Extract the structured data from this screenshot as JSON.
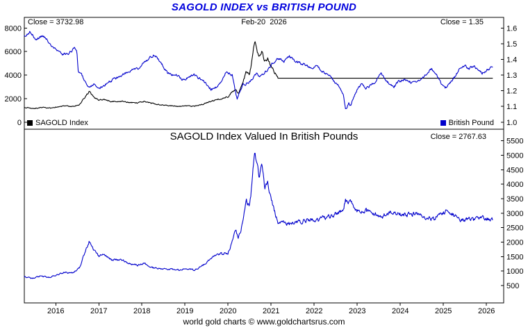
{
  "title": "SAGOLD INDEX vs BRITISH POUND",
  "footer": "world gold charts © www.goldchartsrus.com",
  "colors": {
    "title": "#0000dd",
    "line_blue": "#0000cc",
    "line_black": "#000000"
  },
  "top_panel": {
    "close_left": "Close = 3732.98",
    "date_label": "Feb-20  2026",
    "close_right": "Close = 1.35",
    "legend": [
      {
        "label": "SAGOLD Index",
        "color": "#000000"
      },
      {
        "label": "British Pound",
        "color": "#0000cc"
      }
    ]
  },
  "bottom_panel": {
    "title": "SAGOLD Index Valued In British Pounds",
    "close_right": "Close = 2767.63"
  },
  "chart_data": [
    {
      "type": "line",
      "title": "SAGOLD INDEX vs BRITISH POUND",
      "grid": false,
      "x_range": [
        2015.27,
        2026.4
      ],
      "x_ticks": [
        2016,
        2017,
        2018,
        2019,
        2020,
        2021,
        2022,
        2023,
        2024,
        2025,
        2026
      ],
      "left_axis": {
        "ticks": [
          0,
          2000,
          4000,
          6000,
          8000
        ],
        "range": [
          -600,
          8900
        ],
        "decimals": 0
      },
      "right_axis": {
        "ticks": [
          1.0,
          1.1,
          1.2,
          1.3,
          1.4,
          1.5,
          1.6
        ],
        "range": [
          0.955,
          1.6675
        ],
        "decimals": 1
      },
      "series": [
        {
          "name": "SAGOLD Index",
          "color": "#000000",
          "axis": "left",
          "close": 3732.98,
          "seed": 11,
          "noise_pct": 0.025,
          "noise_until": 2021.17,
          "points": [
            [
              2015.27,
              1250
            ],
            [
              2015.5,
              1170
            ],
            [
              2015.7,
              1260
            ],
            [
              2015.9,
              1190
            ],
            [
              2016.05,
              1290
            ],
            [
              2016.2,
              1380
            ],
            [
              2016.4,
              1330
            ],
            [
              2016.55,
              1480
            ],
            [
              2016.7,
              2250
            ],
            [
              2016.78,
              2600
            ],
            [
              2016.88,
              2150
            ],
            [
              2017.0,
              1850
            ],
            [
              2017.12,
              1950
            ],
            [
              2017.3,
              1750
            ],
            [
              2017.5,
              1800
            ],
            [
              2017.7,
              1680
            ],
            [
              2017.9,
              1620
            ],
            [
              2018.05,
              1760
            ],
            [
              2018.25,
              1600
            ],
            [
              2018.45,
              1480
            ],
            [
              2018.65,
              1400
            ],
            [
              2018.85,
              1340
            ],
            [
              2019.05,
              1380
            ],
            [
              2019.2,
              1340
            ],
            [
              2019.4,
              1500
            ],
            [
              2019.6,
              1760
            ],
            [
              2019.75,
              1950
            ],
            [
              2019.9,
              2060
            ],
            [
              2020.0,
              2160
            ],
            [
              2020.1,
              2620
            ],
            [
              2020.18,
              2820
            ],
            [
              2020.24,
              2440
            ],
            [
              2020.32,
              3120
            ],
            [
              2020.42,
              4320
            ],
            [
              2020.5,
              4080
            ],
            [
              2020.56,
              5250
            ],
            [
              2020.62,
              6880
            ],
            [
              2020.66,
              6350
            ],
            [
              2020.72,
              5480
            ],
            [
              2020.78,
              6020
            ],
            [
              2020.85,
              5080
            ],
            [
              2020.92,
              5420
            ],
            [
              2021.0,
              4780
            ],
            [
              2021.06,
              4380
            ],
            [
              2021.12,
              3980
            ],
            [
              2021.17,
              3732.98
            ],
            [
              2026.14,
              3732.98
            ]
          ]
        },
        {
          "name": "British Pound",
          "color": "#0000cc",
          "axis": "right",
          "close": 1.35,
          "seed": 23,
          "noise_abs": 0.007,
          "points": [
            [
              2015.27,
              1.545
            ],
            [
              2015.4,
              1.575
            ],
            [
              2015.55,
              1.525
            ],
            [
              2015.7,
              1.555
            ],
            [
              2015.85,
              1.505
            ],
            [
              2016.0,
              1.465
            ],
            [
              2016.15,
              1.43
            ],
            [
              2016.3,
              1.44
            ],
            [
              2016.45,
              1.475
            ],
            [
              2016.49,
              1.455
            ],
            [
              2016.52,
              1.33
            ],
            [
              2016.6,
              1.3
            ],
            [
              2016.77,
              1.22
            ],
            [
              2016.9,
              1.245
            ],
            [
              2017.0,
              1.21
            ],
            [
              2017.2,
              1.25
            ],
            [
              2017.4,
              1.28
            ],
            [
              2017.6,
              1.31
            ],
            [
              2017.75,
              1.33
            ],
            [
              2017.95,
              1.35
            ],
            [
              2018.1,
              1.39
            ],
            [
              2018.28,
              1.43
            ],
            [
              2018.4,
              1.4
            ],
            [
              2018.6,
              1.31
            ],
            [
              2018.8,
              1.3
            ],
            [
              2018.95,
              1.27
            ],
            [
              2019.2,
              1.3
            ],
            [
              2019.45,
              1.26
            ],
            [
              2019.6,
              1.21
            ],
            [
              2019.75,
              1.225
            ],
            [
              2019.9,
              1.29
            ],
            [
              2019.97,
              1.32
            ],
            [
              2020.1,
              1.3
            ],
            [
              2020.21,
              1.145
            ],
            [
              2020.35,
              1.24
            ],
            [
              2020.5,
              1.255
            ],
            [
              2020.65,
              1.31
            ],
            [
              2020.75,
              1.29
            ],
            [
              2020.9,
              1.33
            ],
            [
              2021.0,
              1.365
            ],
            [
              2021.15,
              1.41
            ],
            [
              2021.3,
              1.39
            ],
            [
              2021.42,
              1.42
            ],
            [
              2021.6,
              1.38
            ],
            [
              2021.75,
              1.37
            ],
            [
              2021.95,
              1.34
            ],
            [
              2022.05,
              1.36
            ],
            [
              2022.2,
              1.32
            ],
            [
              2022.35,
              1.3
            ],
            [
              2022.5,
              1.25
            ],
            [
              2022.6,
              1.22
            ],
            [
              2022.68,
              1.17
            ],
            [
              2022.73,
              1.075
            ],
            [
              2022.8,
              1.12
            ],
            [
              2022.85,
              1.1
            ],
            [
              2022.92,
              1.16
            ],
            [
              2023.0,
              1.21
            ],
            [
              2023.1,
              1.24
            ],
            [
              2023.2,
              1.21
            ],
            [
              2023.4,
              1.25
            ],
            [
              2023.55,
              1.31
            ],
            [
              2023.65,
              1.27
            ],
            [
              2023.85,
              1.22
            ],
            [
              2023.95,
              1.26
            ],
            [
              2024.1,
              1.27
            ],
            [
              2024.3,
              1.25
            ],
            [
              2024.5,
              1.28
            ],
            [
              2024.65,
              1.32
            ],
            [
              2024.72,
              1.34
            ],
            [
              2024.85,
              1.3
            ],
            [
              2024.95,
              1.25
            ],
            [
              2025.05,
              1.22
            ],
            [
              2025.2,
              1.26
            ],
            [
              2025.35,
              1.33
            ],
            [
              2025.5,
              1.36
            ],
            [
              2025.6,
              1.34
            ],
            [
              2025.7,
              1.36
            ],
            [
              2025.8,
              1.33
            ],
            [
              2025.9,
              1.31
            ],
            [
              2026.0,
              1.33
            ],
            [
              2026.14,
              1.35
            ]
          ]
        }
      ]
    },
    {
      "type": "line",
      "title": "SAGOLD Index Valued In British Pounds",
      "grid": false,
      "x_range": [
        2015.27,
        2026.4
      ],
      "x_ticks": [
        2016,
        2017,
        2018,
        2019,
        2020,
        2021,
        2022,
        2023,
        2024,
        2025,
        2026
      ],
      "right_axis": {
        "ticks": [
          500,
          1000,
          1500,
          2000,
          2500,
          3000,
          3500,
          4000,
          4500,
          5000,
          5500
        ],
        "range": [
          -100,
          5900
        ],
        "decimals": 0
      },
      "series": [
        {
          "name": "SAGOLD in British Pounds",
          "color": "#0000cc",
          "axis": "right",
          "close": 2767.63,
          "seed": 37,
          "noise_pct": 0.022,
          "points": [
            [
              2015.27,
              808
            ],
            [
              2015.45,
              745
            ],
            [
              2015.65,
              825
            ],
            [
              2015.85,
              780
            ],
            [
              2016.05,
              880
            ],
            [
              2016.2,
              965
            ],
            [
              2016.4,
              925
            ],
            [
              2016.55,
              1110
            ],
            [
              2016.7,
              1730
            ],
            [
              2016.78,
              2050
            ],
            [
              2016.88,
              1750
            ],
            [
              2017.0,
              1530
            ],
            [
              2017.12,
              1590
            ],
            [
              2017.3,
              1380
            ],
            [
              2017.5,
              1400
            ],
            [
              2017.7,
              1275
            ],
            [
              2017.9,
              1205
            ],
            [
              2018.05,
              1265
            ],
            [
              2018.25,
              1125
            ],
            [
              2018.45,
              1070
            ],
            [
              2018.65,
              1075
            ],
            [
              2018.85,
              1045
            ],
            [
              2019.05,
              1085
            ],
            [
              2019.2,
              1035
            ],
            [
              2019.4,
              1180
            ],
            [
              2019.6,
              1450
            ],
            [
              2019.75,
              1600
            ],
            [
              2019.9,
              1590
            ],
            [
              2020.0,
              1630
            ],
            [
              2020.1,
              2020
            ],
            [
              2020.18,
              2430
            ],
            [
              2020.24,
              2150
            ],
            [
              2020.32,
              2520
            ],
            [
              2020.42,
              3440
            ],
            [
              2020.5,
              3250
            ],
            [
              2020.56,
              4060
            ],
            [
              2020.62,
              5150
            ],
            [
              2020.66,
              4880
            ],
            [
              2020.72,
              4230
            ],
            [
              2020.78,
              4650
            ],
            [
              2020.85,
              3890
            ],
            [
              2020.92,
              4060
            ],
            [
              2021.0,
              3530
            ],
            [
              2021.06,
              3190
            ],
            [
              2021.12,
              2860
            ],
            [
              2021.17,
              2650
            ],
            [
              2021.3,
              2690
            ],
            [
              2021.42,
              2630
            ],
            [
              2021.6,
              2705
            ],
            [
              2021.75,
              2725
            ],
            [
              2021.95,
              2785
            ],
            [
              2022.05,
              2745
            ],
            [
              2022.2,
              2830
            ],
            [
              2022.35,
              2870
            ],
            [
              2022.5,
              2985
            ],
            [
              2022.6,
              3060
            ],
            [
              2022.68,
              3190
            ],
            [
              2022.73,
              3455
            ],
            [
              2022.8,
              3335
            ],
            [
              2022.85,
              3395
            ],
            [
              2022.92,
              3220
            ],
            [
              2023.0,
              3085
            ],
            [
              2023.1,
              3010
            ],
            [
              2023.2,
              3085
            ],
            [
              2023.4,
              2985
            ],
            [
              2023.55,
              2850
            ],
            [
              2023.65,
              2940
            ],
            [
              2023.85,
              3060
            ],
            [
              2023.95,
              2965
            ],
            [
              2024.1,
              2940
            ],
            [
              2024.3,
              2985
            ],
            [
              2024.5,
              2915
            ],
            [
              2024.65,
              2830
            ],
            [
              2024.72,
              2785
            ],
            [
              2024.85,
              2870
            ],
            [
              2024.95,
              2985
            ],
            [
              2025.05,
              3060
            ],
            [
              2025.2,
              2965
            ],
            [
              2025.35,
              2805
            ],
            [
              2025.5,
              2745
            ],
            [
              2025.6,
              2785
            ],
            [
              2025.7,
              2745
            ],
            [
              2025.8,
              2805
            ],
            [
              2025.9,
              2850
            ],
            [
              2026.0,
              2805
            ],
            [
              2026.14,
              2767.63
            ]
          ]
        }
      ]
    }
  ]
}
